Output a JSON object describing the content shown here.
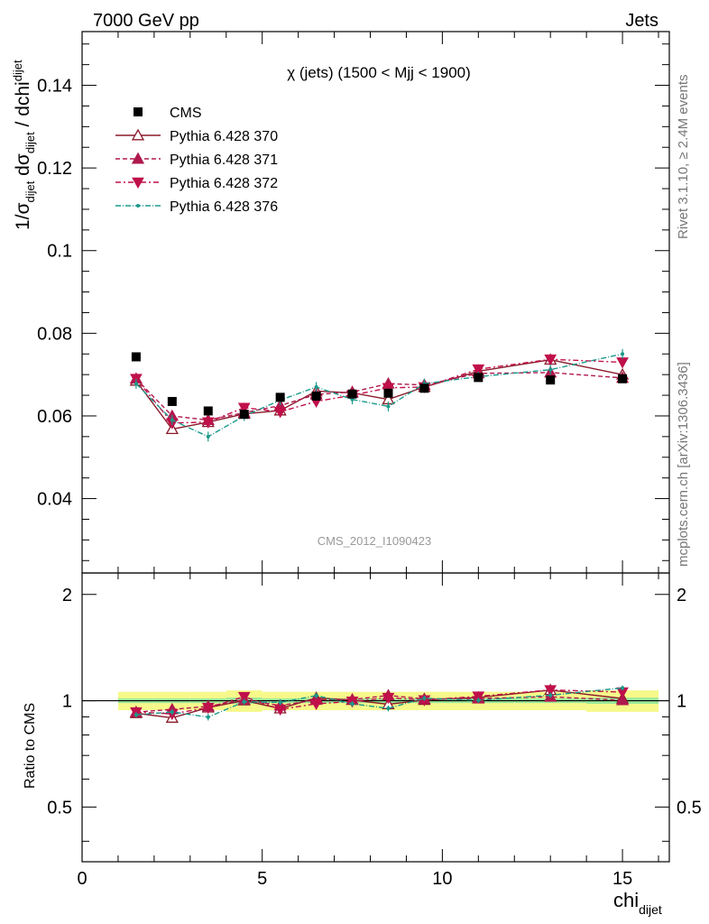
{
  "header": {
    "left": "7000 GeV pp",
    "right": "Jets"
  },
  "chart_data": {
    "type": "scatter",
    "title": "χ (jets) (1500 < Mjj < 1900)",
    "xlabel_main": "chi",
    "xlabel_sub": "dijet",
    "ylabel_main": "1/σ",
    "ylabel_sub1": "dijet",
    "ylabel_mid": " dσ",
    "ylabel_sub2": "dijet",
    "ylabel_tail": " / dchi",
    "ylabel_sub3": "dijet",
    "ratio_ylabel": "Ratio to CMS",
    "xlim": [
      0,
      16.3
    ],
    "ylim": [
      0.022,
      0.153
    ],
    "ratio_ylim": [
      0.35,
      2.3
    ],
    "xticks": [
      0,
      5,
      10,
      15
    ],
    "yticks": [
      0.04,
      0.06,
      0.08,
      0.1,
      0.12,
      0.14
    ],
    "ytick_labels": [
      "0.04",
      "0.06",
      "0.08",
      "0.1",
      "0.12",
      "0.14"
    ],
    "ratio_yticks": [
      0.5,
      1,
      2
    ],
    "ratio_ytick_labels": [
      "0.5",
      "1",
      "2"
    ],
    "x": [
      1.5,
      2.5,
      3.5,
      4.5,
      5.5,
      6.5,
      7.5,
      8.5,
      9.5,
      11,
      13,
      15
    ],
    "bin_edges": [
      1,
      2,
      3,
      4,
      5,
      6,
      7,
      8,
      9,
      10,
      12,
      14,
      16
    ],
    "data": {
      "name": "CMS",
      "values": [
        0.0743,
        0.0635,
        0.0612,
        0.0604,
        0.0645,
        0.0648,
        0.0653,
        0.0655,
        0.0667,
        0.0693,
        0.0687,
        0.069
      ],
      "ratio_band_inner": [
        0.015,
        0.015,
        0.015,
        0.02,
        0.015,
        0.015,
        0.015,
        0.015,
        0.015,
        0.015,
        0.015,
        0.02
      ],
      "ratio_band_outer": [
        0.06,
        0.06,
        0.06,
        0.07,
        0.06,
        0.06,
        0.06,
        0.06,
        0.06,
        0.06,
        0.06,
        0.07
      ]
    },
    "series": [
      {
        "name": "Pythia 6.428 370",
        "values": [
          0.0685,
          0.0568,
          0.0585,
          0.0605,
          0.0613,
          0.066,
          0.0656,
          0.064,
          0.067,
          0.0708,
          0.0736,
          0.07
        ],
        "err": [
          0.0012,
          0.0012,
          0.0012,
          0.0012,
          0.0012,
          0.0012,
          0.0012,
          0.0012,
          0.0012,
          0.0012,
          0.0012,
          0.0012
        ],
        "color": "#8b1a2b",
        "marker": "triangle-up-open",
        "dash": ""
      },
      {
        "name": "Pythia 6.428 371",
        "values": [
          0.069,
          0.06,
          0.059,
          0.0608,
          0.0625,
          0.0652,
          0.0658,
          0.0678,
          0.0675,
          0.0703,
          0.0705,
          0.0692
        ],
        "err": [
          0.0012,
          0.0012,
          0.0012,
          0.0012,
          0.0012,
          0.0012,
          0.0012,
          0.0012,
          0.0012,
          0.0012,
          0.0012,
          0.0012
        ],
        "color": "#b0184e",
        "marker": "triangle-up",
        "dash": "5,3"
      },
      {
        "name": "Pythia 6.428 372",
        "values": [
          0.069,
          0.0583,
          0.0585,
          0.062,
          0.061,
          0.0635,
          0.065,
          0.0668,
          0.067,
          0.0713,
          0.0737,
          0.073
        ],
        "err": [
          0.0012,
          0.0012,
          0.0012,
          0.0012,
          0.0012,
          0.0012,
          0.0012,
          0.0012,
          0.0012,
          0.0012,
          0.0012,
          0.0012
        ],
        "color": "#c0104a",
        "marker": "triangle-down",
        "dash": "6,3,2,3"
      },
      {
        "name": "Pythia 6.428 376",
        "values": [
          0.0678,
          0.059,
          0.055,
          0.06,
          0.0638,
          0.067,
          0.064,
          0.0623,
          0.0678,
          0.0695,
          0.0712,
          0.075
        ],
        "err": [
          0.0012,
          0.0012,
          0.0012,
          0.0012,
          0.0012,
          0.0012,
          0.0012,
          0.0012,
          0.0012,
          0.0012,
          0.0012,
          0.0012
        ],
        "color": "#1a9a8a",
        "marker": "dot",
        "dash": "6,2,1,2"
      }
    ],
    "legend_position": "top-left",
    "watermark": "CMS_2012_I1090423",
    "side_text_top": "Rivet 3.1.10, ≥ 2.4M events",
    "side_text_bottom": "mcplots.cern.ch [arXiv:1306.3436]",
    "colors": {
      "data": "#000000",
      "band_inner": "#9be89b",
      "band_outer": "#f6f98a",
      "watermark": "#999999",
      "side_text": "#777777"
    }
  }
}
